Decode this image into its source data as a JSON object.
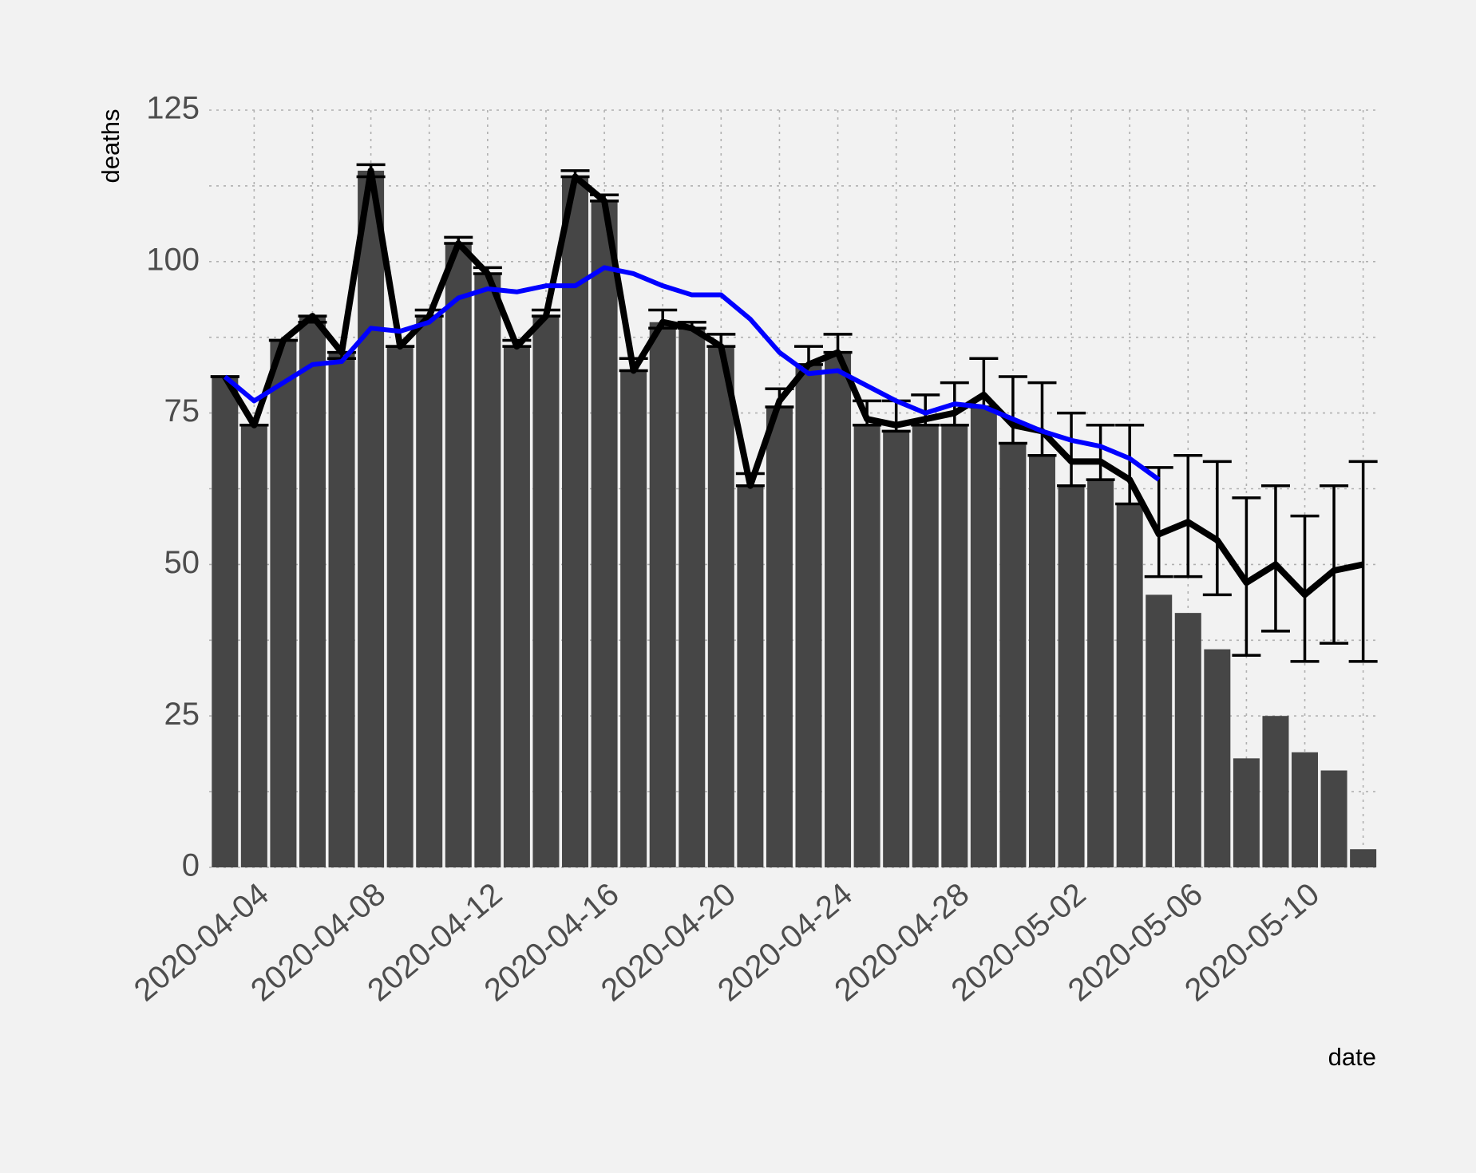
{
  "chart_data": {
    "type": "bar",
    "x_label": "date",
    "y_label": "deaths",
    "categories": [
      null,
      "2020-04-04",
      null,
      null,
      null,
      "2020-04-08",
      null,
      null,
      null,
      "2020-04-12",
      null,
      null,
      null,
      "2020-04-16",
      null,
      null,
      null,
      "2020-04-20",
      null,
      null,
      null,
      "2020-04-24",
      null,
      null,
      null,
      "2020-04-28",
      null,
      null,
      null,
      "2020-05-02",
      null,
      null,
      null,
      "2020-05-06",
      null,
      null,
      null,
      "2020-05-10",
      null,
      null
    ],
    "values": [
      81,
      73,
      87,
      91,
      85,
      115,
      86,
      91,
      103,
      98,
      86,
      91,
      114,
      110,
      82,
      90,
      89,
      86,
      63,
      76,
      83,
      85,
      73,
      72,
      73,
      73,
      76,
      70,
      68,
      63,
      64,
      60,
      45,
      42,
      36,
      18,
      25,
      19,
      16,
      3
    ],
    "color": "#464646",
    "estimate": {
      "color": "#000000",
      "values": [
        81,
        73,
        87,
        91,
        85,
        115,
        86,
        91,
        103,
        98,
        86,
        91,
        114,
        110,
        82,
        90,
        89,
        86,
        63,
        77,
        83,
        85,
        74,
        73,
        74,
        75,
        78,
        73,
        72,
        67,
        67,
        64,
        55,
        57,
        54,
        47,
        50,
        45,
        49,
        50
      ],
      "lower": [
        81,
        73,
        87,
        90,
        84,
        114,
        86,
        91,
        103,
        98,
        86,
        91,
        114,
        110,
        82,
        89,
        89,
        86,
        63,
        76,
        83,
        85,
        73,
        72,
        73,
        73,
        76,
        70,
        68,
        63,
        64,
        60,
        48,
        48,
        45,
        35,
        39,
        34,
        37,
        34
      ],
      "upper": [
        81,
        73,
        87,
        91,
        85,
        116,
        86,
        92,
        104,
        99,
        87,
        92,
        115,
        111,
        84,
        92,
        90,
        88,
        65,
        79,
        86,
        88,
        77,
        77,
        78,
        80,
        84,
        81,
        80,
        75,
        73,
        73,
        66,
        68,
        67,
        61,
        63,
        58,
        63,
        67
      ]
    },
    "average": {
      "color": "#0000ff",
      "values": [
        81,
        77,
        80,
        83,
        83.5,
        89,
        88.5,
        90,
        94,
        95.5,
        95,
        96,
        96,
        99,
        98,
        96,
        94.5,
        94.5,
        90.5,
        85,
        81.5,
        82,
        79.5,
        77,
        75,
        76.5,
        76,
        74,
        72,
        70.5,
        69.5,
        67.5,
        64,
        null,
        null,
        null,
        null,
        null,
        null,
        null
      ]
    },
    "ylim": [
      0,
      125
    ],
    "yticks": [
      0,
      25,
      50,
      75,
      100,
      125
    ],
    "grid": true
  }
}
